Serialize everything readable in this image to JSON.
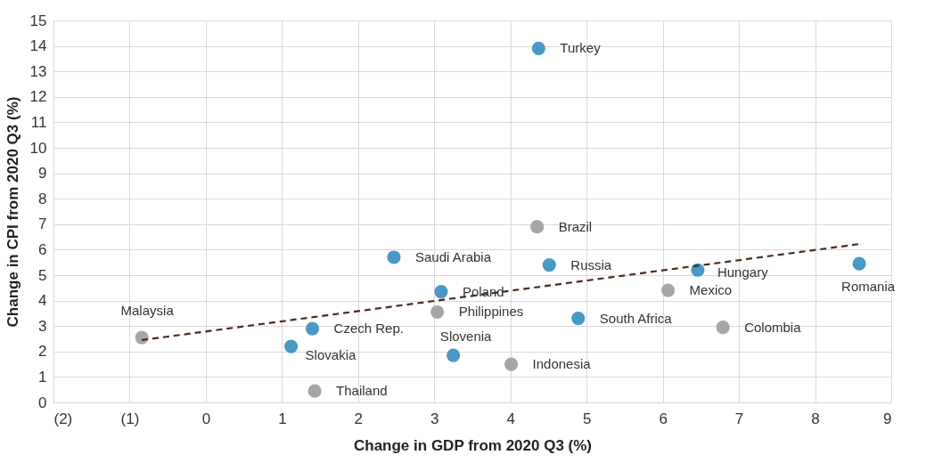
{
  "chart_data": {
    "type": "scatter",
    "xlabel": "Change in GDP from 2020 Q3 (%)",
    "ylabel": "Change in CPI from 2020 Q3 (%)",
    "xlim": [
      -2,
      9
    ],
    "xticks": [
      {
        "value": -2,
        "label": "(2)"
      },
      {
        "value": -1,
        "label": "(1)"
      },
      0,
      1,
      2,
      3,
      4,
      5,
      6,
      7,
      8,
      9
    ],
    "ylim": [
      0,
      15
    ],
    "yticks": [
      0,
      1,
      2,
      3,
      4,
      5,
      6,
      7,
      8,
      9,
      10,
      11,
      12,
      13,
      14,
      15
    ],
    "grid": true,
    "marker": "circle",
    "series": [
      {
        "color": "#4a98c4",
        "x": [
          4.37,
          2.47,
          4.51,
          6.46,
          8.58,
          3.09,
          4.89,
          1.4,
          1.12,
          3.25
        ],
        "values": [
          13.9,
          5.7,
          5.4,
          5.2,
          5.45,
          4.35,
          3.3,
          2.9,
          2.2,
          1.85
        ],
        "value_labels": [
          "Turkey",
          "Saudi Arabia",
          "Russia",
          "Hungary",
          "Romania",
          "Poland",
          "South Africa",
          "Czech Rep.",
          "Slovakia",
          "Slovenia"
        ]
      },
      {
        "color": "#a6a6a6",
        "x": [
          4.35,
          6.07,
          3.04,
          -0.84,
          6.79,
          4.01,
          1.43
        ],
        "values": [
          6.9,
          4.4,
          3.55,
          2.55,
          2.95,
          1.5,
          0.45
        ],
        "value_labels": [
          "Brazil",
          "Mexico",
          "Philippines",
          "Malaysia",
          "Colombia",
          "Indonesia",
          "Thailand"
        ]
      },
      {
        "type": "line",
        "color": "#4d2a1a",
        "line_style": "dashed",
        "marker": "none",
        "x": [
          -0.84,
          8.58
        ],
        "values": [
          2.45,
          6.22
        ]
      }
    ]
  }
}
